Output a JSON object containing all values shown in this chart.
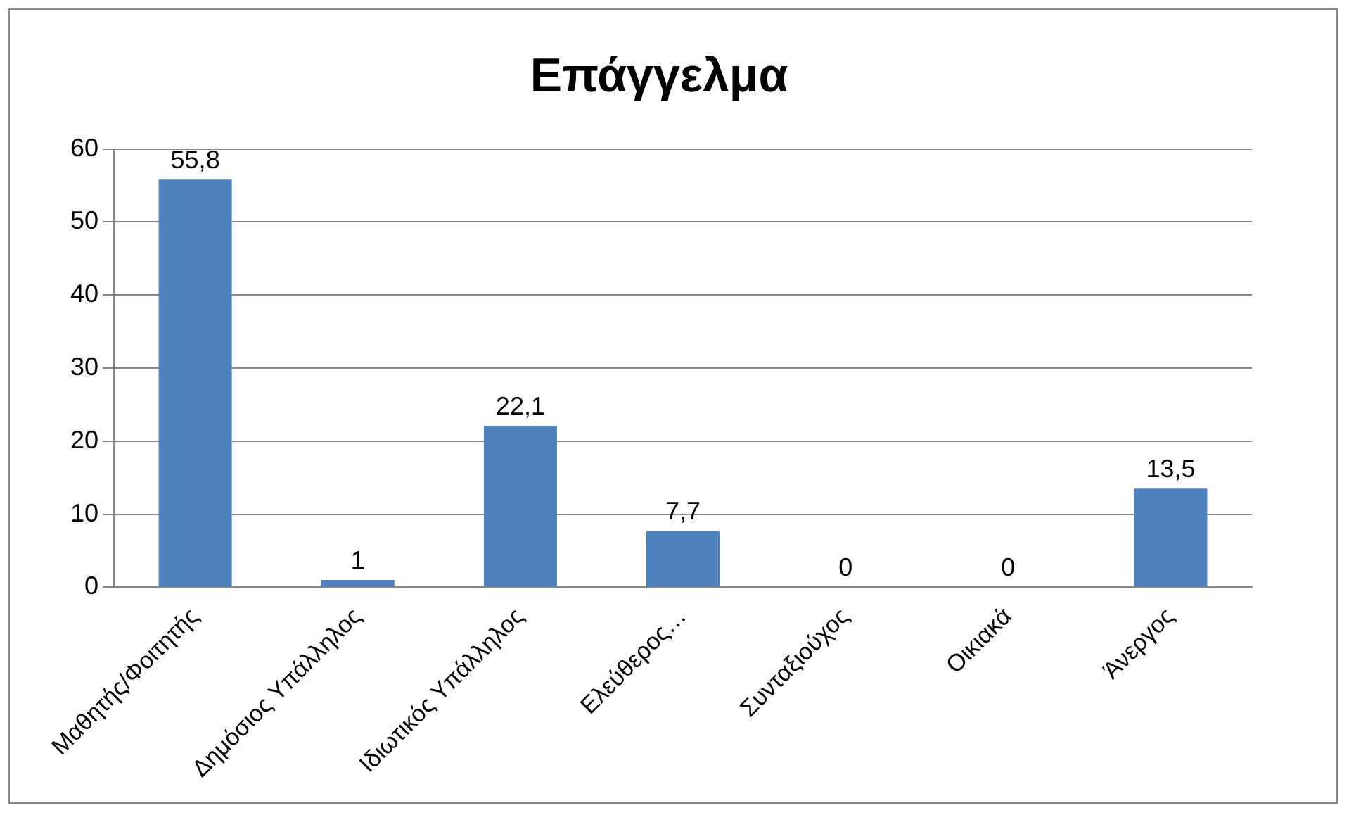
{
  "chart_data": {
    "type": "bar",
    "title": "Επάγγελμα",
    "categories": [
      "Μαθητής/Φοιτητής",
      "Δημόσιος Υπάλληλος",
      "Ιδιωτικός Υπάλληλος",
      "Ελεύθερος…",
      "Συνταξιούχος",
      "Οικιακά",
      "Άνεργος"
    ],
    "values": [
      55.8,
      1,
      22.1,
      7.7,
      0,
      0,
      13.5
    ],
    "value_labels": [
      "55,8",
      "1",
      "22,1",
      "7,7",
      "0",
      "0",
      "13,5"
    ],
    "color": "#4f81bd",
    "ylim": [
      0,
      60
    ],
    "yticks": [
      0,
      10,
      20,
      30,
      40,
      50,
      60
    ],
    "grid": "y",
    "legend": false
  }
}
